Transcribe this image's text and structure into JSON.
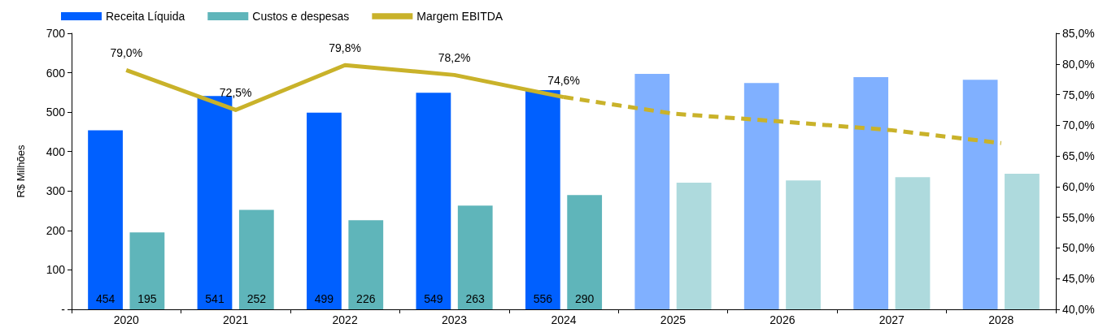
{
  "chart_data": {
    "type": "bar",
    "categories": [
      "2020",
      "2021",
      "2022",
      "2023",
      "2024",
      "2025",
      "2026",
      "2027",
      "2028"
    ],
    "ylabel": "R$ Milhões",
    "series": [
      {
        "name": "Receita Líquida",
        "color": "#0060ff",
        "colors": [
          "#0060ff",
          "#0060ff",
          "#0060ff",
          "#0060ff",
          "#0060ff",
          "#80b0ff",
          "#80b0ff",
          "#80b0ff",
          "#80b0ff"
        ],
        "values": [
          454,
          541,
          499,
          549,
          556,
          597,
          574,
          589,
          582
        ],
        "value_labels": [
          "454",
          "541",
          "499",
          "549",
          "556",
          null,
          null,
          null,
          null
        ]
      },
      {
        "name": "Custos e despesas",
        "color": "#5fb5ba",
        "colors": [
          "#5fb5ba",
          "#5fb5ba",
          "#5fb5ba",
          "#5fb5ba",
          "#5fb5ba",
          "#aedadd",
          "#aedadd",
          "#aedadd",
          "#aedadd"
        ],
        "values": [
          195,
          252,
          226,
          263,
          290,
          321,
          327,
          335,
          344
        ],
        "value_labels": [
          "195",
          "252",
          "226",
          "263",
          "290",
          null,
          null,
          null,
          null
        ]
      },
      {
        "name": "Margem EBITDA",
        "type": "line",
        "axis": "y2",
        "color": "#c9b22a",
        "line_style": "solid",
        "values": [
          79.0,
          72.5,
          79.8,
          78.2,
          74.6,
          null,
          null,
          null,
          null
        ],
        "value_labels": [
          "79,0%",
          "72,5%",
          "79,8%",
          "78,2%",
          "74,6%",
          null,
          null,
          null,
          null
        ]
      },
      {
        "type": "line",
        "axis": "y2",
        "color": "#c9b22a",
        "line_style": "dashed",
        "values": [
          null,
          null,
          null,
          null,
          74.6,
          71.9,
          70.6,
          69.2,
          67.1
        ]
      }
    ],
    "ylim": [
      0,
      700
    ],
    "yticks": [
      {
        "value": 0,
        "label": "-"
      },
      100,
      200,
      300,
      400,
      500,
      600,
      700
    ],
    "y2lim": [
      40,
      85
    ],
    "y2ticks": [
      {
        "value": 40,
        "label": "40,0%"
      },
      {
        "value": 45,
        "label": "45,0%"
      },
      {
        "value": 50,
        "label": "50,0%"
      },
      {
        "value": 55,
        "label": "55,0%"
      },
      {
        "value": 60,
        "label": "60,0%"
      },
      {
        "value": 65,
        "label": "65,0%"
      },
      {
        "value": 70,
        "label": "70,0%"
      },
      {
        "value": 75,
        "label": "75,0%"
      },
      {
        "value": 80,
        "label": "80,0%"
      },
      {
        "value": 85,
        "label": "85,0%"
      }
    ],
    "grid": false,
    "legend": "top left",
    "marker": "none"
  }
}
